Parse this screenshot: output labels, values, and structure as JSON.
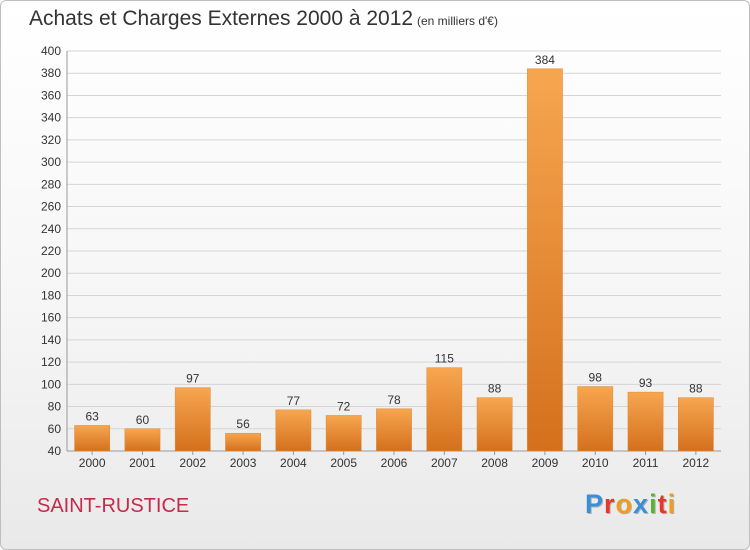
{
  "header": {
    "title": "Achats et Charges Externes 2000 à 2012",
    "subtitle": "(en milliers d'€)"
  },
  "footer": {
    "commune": "SAINT-RUSTICE",
    "logo_text": "Proxiti",
    "logo_letters": [
      {
        "char": "P",
        "color": "#3a8fd6"
      },
      {
        "char": "r",
        "color": "#e8362b"
      },
      {
        "char": "o",
        "color": "#f39b1f"
      },
      {
        "char": "x",
        "color": "#3a8fd6"
      },
      {
        "char": "i",
        "color": "#55b534"
      },
      {
        "char": "t",
        "color": "#e8362b"
      },
      {
        "char": "i",
        "color": "#f39b1f"
      }
    ]
  },
  "colors": {
    "bar_light": "#f7a650",
    "bar_dark": "#d4701d",
    "grid": "#d5d5d5",
    "text": "#333333",
    "commune": "#c8284a"
  },
  "chart_data": {
    "type": "bar",
    "title": "Achats et Charges Externes 2000 à 2012",
    "subtitle": "(en milliers d'€)",
    "categories": [
      "2000",
      "2001",
      "2002",
      "2003",
      "2004",
      "2005",
      "2006",
      "2007",
      "2008",
      "2009",
      "2010",
      "2011",
      "2012"
    ],
    "values": [
      63,
      60,
      97,
      56,
      77,
      72,
      78,
      115,
      88,
      384,
      98,
      93,
      88
    ],
    "ylim": [
      40,
      400
    ],
    "yticks": [
      40,
      60,
      80,
      100,
      120,
      140,
      160,
      180,
      200,
      220,
      240,
      260,
      280,
      300,
      320,
      340,
      360,
      380,
      400
    ],
    "grid": true,
    "data_labels": true
  }
}
